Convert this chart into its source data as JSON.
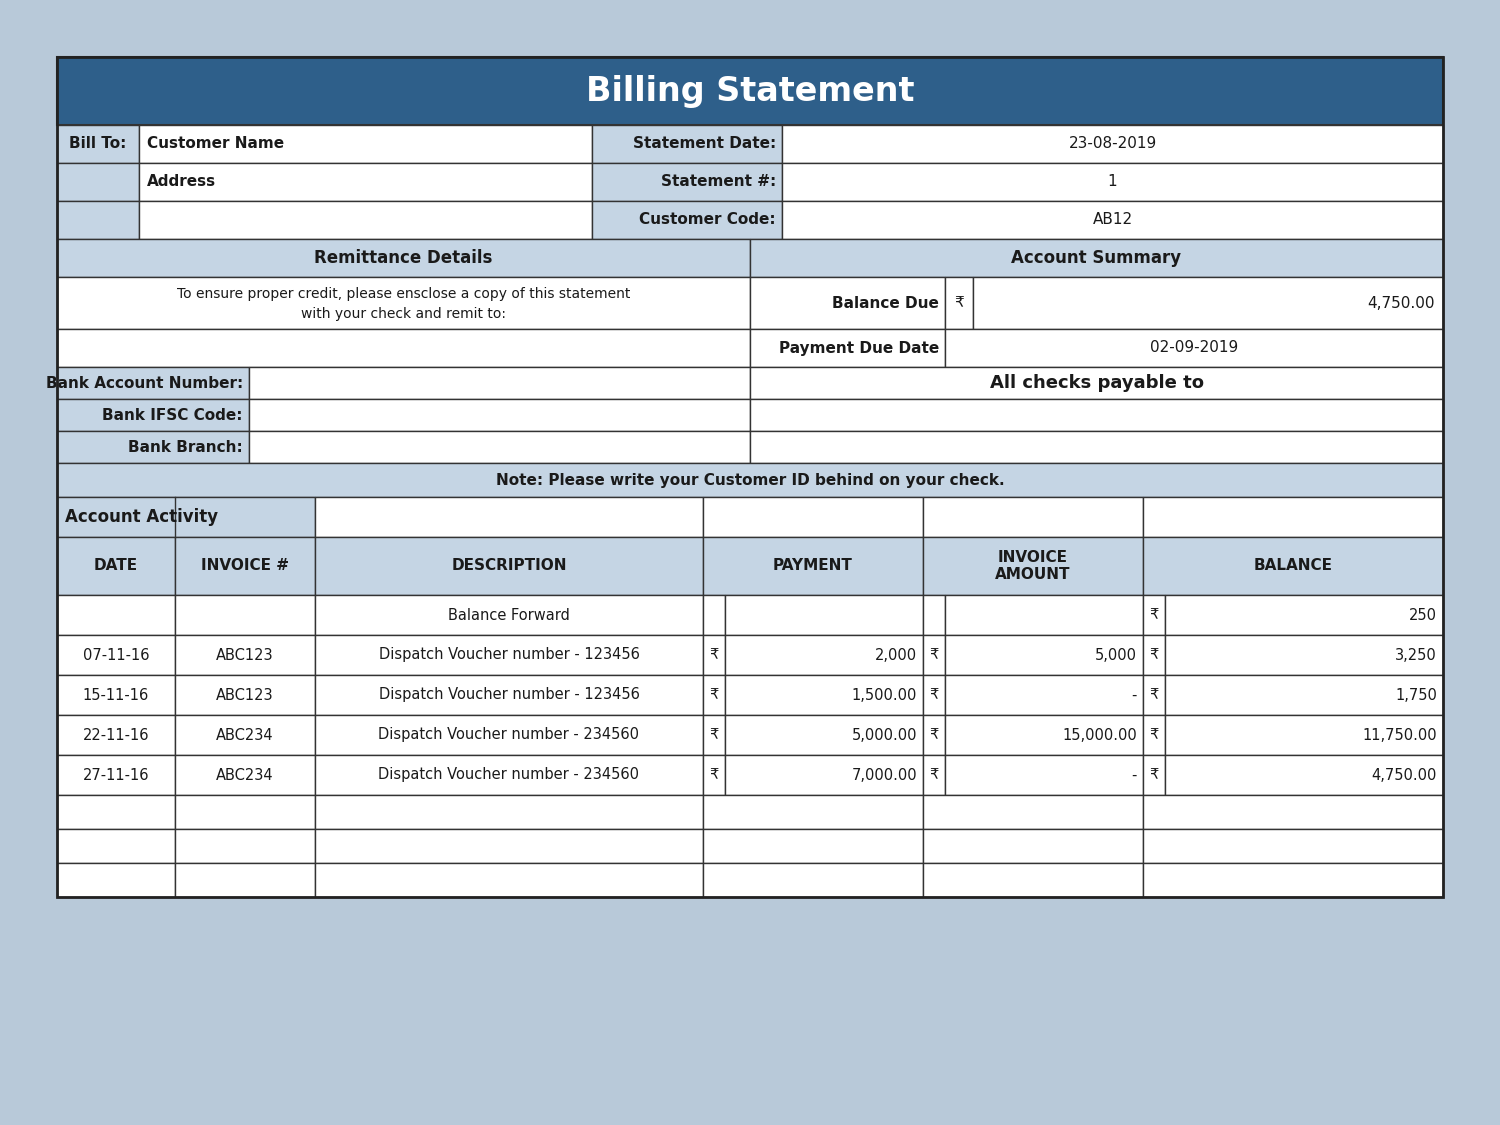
{
  "title": "Billing Statement",
  "title_bg": "#2E5F8A",
  "title_color": "#FFFFFF",
  "bg_color": "#B8C9D9",
  "table_bg": "#FFFFFF",
  "light_blue": "#C5D5E4",
  "border_color": "#333333",
  "bill_to_label": "Bill To:",
  "customer_name": "Customer Name",
  "address": "Address",
  "statement_date_label": "Statement Date:",
  "statement_date": "23-08-2019",
  "statement_num_label": "Statement #:",
  "statement_num": "1",
  "customer_code_label": "Customer Code:",
  "customer_code": "AB12",
  "remittance_title": "Remittance Details",
  "account_summary_title": "Account Summary",
  "remittance_text1": "To ensure proper credit, please ensclose a copy of this statement",
  "remittance_text2": "with your check and remit to:",
  "balance_due_label": "Balance Due",
  "balance_due_symbol": "₹",
  "balance_due_value": "4,750.00",
  "payment_due_label": "Payment Due Date",
  "payment_due_value": "02-09-2019",
  "bank_account_label": "Bank Account Number:",
  "bank_ifsc_label": "Bank IFSC Code:",
  "bank_branch_label": "Bank Branch:",
  "all_checks_text": "All checks payable to",
  "note_text": "Note: Please write your Customer ID behind on your check.",
  "account_activity": "Account Activity",
  "col_headers": [
    "DATE",
    "INVOICE #",
    "DESCRIPTION",
    "PAYMENT",
    "INVOICE\nAMOUNT",
    "BALANCE"
  ],
  "transactions": [
    {
      "date": "",
      "invoice": "",
      "description": "Balance Forward",
      "payment_sym": "",
      "payment_val": "",
      "inv_sym": "",
      "inv_val": "",
      "bal_sym": "₹",
      "bal_val": "250"
    },
    {
      "date": "07-11-16",
      "invoice": "ABC123",
      "description": "Dispatch Voucher number - 123456",
      "payment_sym": "₹",
      "payment_val": "2,000",
      "inv_sym": "₹",
      "inv_val": "5,000",
      "bal_sym": "₹",
      "bal_val": "3,250"
    },
    {
      "date": "15-11-16",
      "invoice": "ABC123",
      "description": "Dispatch Voucher number - 123456",
      "payment_sym": "₹",
      "payment_val": "1,500.00",
      "inv_sym": "₹",
      "inv_val": "-",
      "bal_sym": "₹",
      "bal_val": "1,750"
    },
    {
      "date": "22-11-16",
      "invoice": "ABC234",
      "description": "Dispatch Voucher number - 234560",
      "payment_sym": "₹",
      "payment_val": "5,000.00",
      "inv_sym": "₹",
      "inv_val": "15,000.00",
      "bal_sym": "₹",
      "bal_val": "11,750.00"
    },
    {
      "date": "27-11-16",
      "invoice": "ABC234",
      "description": "Dispatch Voucher number - 234560",
      "payment_sym": "₹",
      "payment_val": "7,000.00",
      "inv_sym": "₹",
      "inv_val": "-",
      "bal_sym": "₹",
      "bal_val": "4,750.00"
    }
  ],
  "empty_rows": 3
}
